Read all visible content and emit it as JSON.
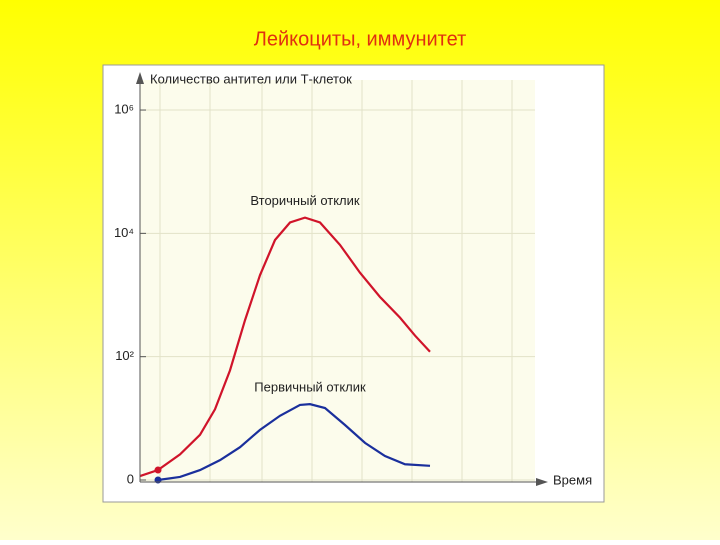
{
  "chart_data": {
    "type": "line",
    "title": "Лейкоциты, иммунитет",
    "y_label": "Количество антител или Т-клеток",
    "x_label": "Время",
    "log_y": true,
    "grid": true,
    "xlim": [
      0,
      100
    ],
    "ylim": [
      1,
      3700000
    ],
    "yticks": [
      {
        "value": 1,
        "label": "0"
      },
      {
        "value": 100,
        "label": "10²"
      },
      {
        "value": 10000,
        "label": "10⁴"
      },
      {
        "value": 1000000,
        "label": "10⁶"
      }
    ],
    "series": [
      {
        "name": "Вторичный отклик",
        "color": "#d0142a",
        "x": [
          0,
          4.5,
          10,
          15,
          18.75,
          22.5,
          26.25,
          30,
          33.75,
          37.5,
          41.25,
          45,
          50,
          55,
          60,
          65,
          68.75,
          72.5
        ],
        "values": [
          1.16,
          1.45,
          2.6,
          5.4,
          14,
          60,
          390,
          2100,
          7800,
          15000,
          18000,
          15000,
          6500,
          2300,
          930,
          430,
          220,
          120
        ]
      },
      {
        "name": "Первичный отклик",
        "color": "#1a2f9c",
        "x": [
          4.5,
          10,
          15,
          20,
          25,
          30,
          35,
          40,
          42.5,
          46.25,
          51.25,
          56.25,
          61.25,
          66.25,
          72.5
        ],
        "values": [
          1,
          1.12,
          1.45,
          2.1,
          3.4,
          6.5,
          11,
          16.5,
          17,
          14.7,
          7.8,
          4,
          2.45,
          1.8,
          1.7
        ]
      }
    ]
  }
}
